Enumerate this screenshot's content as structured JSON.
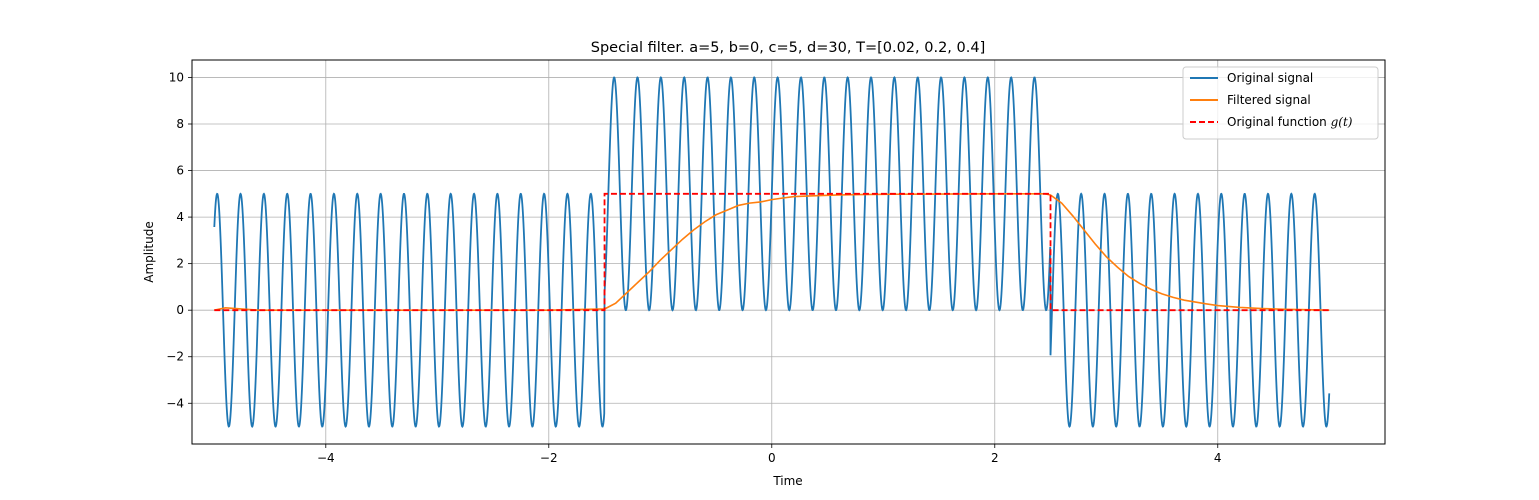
{
  "chart_data": {
    "type": "line",
    "title": "Special filter. a=5, b=0, c=5, d=30, T=[0.02, 0.2, 0.4]",
    "xlabel": "Time",
    "ylabel": "Amplitude",
    "xlim": [
      -5.2,
      5.5
    ],
    "ylim": [
      -5.75,
      10.75
    ],
    "xticks": [
      -4,
      -2,
      0,
      2,
      4
    ],
    "yticks": [
      -4,
      -2,
      0,
      2,
      4,
      6,
      8,
      10
    ],
    "grid": true,
    "legend_position": "upper right",
    "x_domain": [
      -5,
      5
    ],
    "series": [
      {
        "name": "Original signal",
        "color": "#1f77b4",
        "style": "solid",
        "description": "5*sin(30 t) oscillating between -5 and 5 for t<-1.5 and t>2.5; 5+5*sin(30 t) oscillating between 0 and 10 for -1.5<=t<=2.5",
        "amplitude": 5,
        "angular_frequency": 30,
        "offset_segments": [
          {
            "x_start": -5,
            "x_end": -1.5,
            "offset": 0
          },
          {
            "x_start": -1.5,
            "x_end": 2.5,
            "offset": 5
          },
          {
            "x_start": 2.5,
            "x_end": 5,
            "offset": 0
          }
        ]
      },
      {
        "name": "Filtered signal",
        "color": "#ff7f0e",
        "style": "solid",
        "points": [
          [
            -5.0,
            0.0
          ],
          [
            -4.9,
            0.1
          ],
          [
            -4.6,
            0.0
          ],
          [
            -4.0,
            0.0
          ],
          [
            -3.0,
            0.0
          ],
          [
            -2.0,
            0.0
          ],
          [
            -1.55,
            0.05
          ],
          [
            -1.5,
            0.05
          ],
          [
            -1.4,
            0.3
          ],
          [
            -1.3,
            0.75
          ],
          [
            -1.2,
            1.2
          ],
          [
            -1.1,
            1.65
          ],
          [
            -1.0,
            2.15
          ],
          [
            -0.9,
            2.6
          ],
          [
            -0.8,
            3.05
          ],
          [
            -0.7,
            3.45
          ],
          [
            -0.6,
            3.8
          ],
          [
            -0.5,
            4.1
          ],
          [
            -0.4,
            4.3
          ],
          [
            -0.3,
            4.5
          ],
          [
            -0.2,
            4.6
          ],
          [
            -0.1,
            4.65
          ],
          [
            0.0,
            4.75
          ],
          [
            0.1,
            4.82
          ],
          [
            0.2,
            4.88
          ],
          [
            0.4,
            4.92
          ],
          [
            0.6,
            4.95
          ],
          [
            0.8,
            4.97
          ],
          [
            1.0,
            4.98
          ],
          [
            1.5,
            4.99
          ],
          [
            2.0,
            5.0
          ],
          [
            2.45,
            5.0
          ],
          [
            2.5,
            4.95
          ],
          [
            2.6,
            4.6
          ],
          [
            2.7,
            4.05
          ],
          [
            2.8,
            3.45
          ],
          [
            2.9,
            2.85
          ],
          [
            3.0,
            2.3
          ],
          [
            3.1,
            1.85
          ],
          [
            3.2,
            1.45
          ],
          [
            3.3,
            1.15
          ],
          [
            3.4,
            0.9
          ],
          [
            3.5,
            0.7
          ],
          [
            3.6,
            0.55
          ],
          [
            3.7,
            0.43
          ],
          [
            3.8,
            0.35
          ],
          [
            3.9,
            0.27
          ],
          [
            4.0,
            0.2
          ],
          [
            4.2,
            0.12
          ],
          [
            4.4,
            0.07
          ],
          [
            4.6,
            0.04
          ],
          [
            4.8,
            0.02
          ],
          [
            5.0,
            0.0
          ]
        ]
      },
      {
        "name": "Original function $g(t)$",
        "legend_label": "Original function ",
        "legend_math": "g(t)",
        "color": "#ff0000",
        "style": "dashed",
        "points": [
          [
            -5.0,
            0
          ],
          [
            -1.5,
            0
          ],
          [
            -1.5,
            5
          ],
          [
            2.5,
            5
          ],
          [
            2.5,
            0
          ],
          [
            5.0,
            0
          ]
        ]
      }
    ]
  }
}
